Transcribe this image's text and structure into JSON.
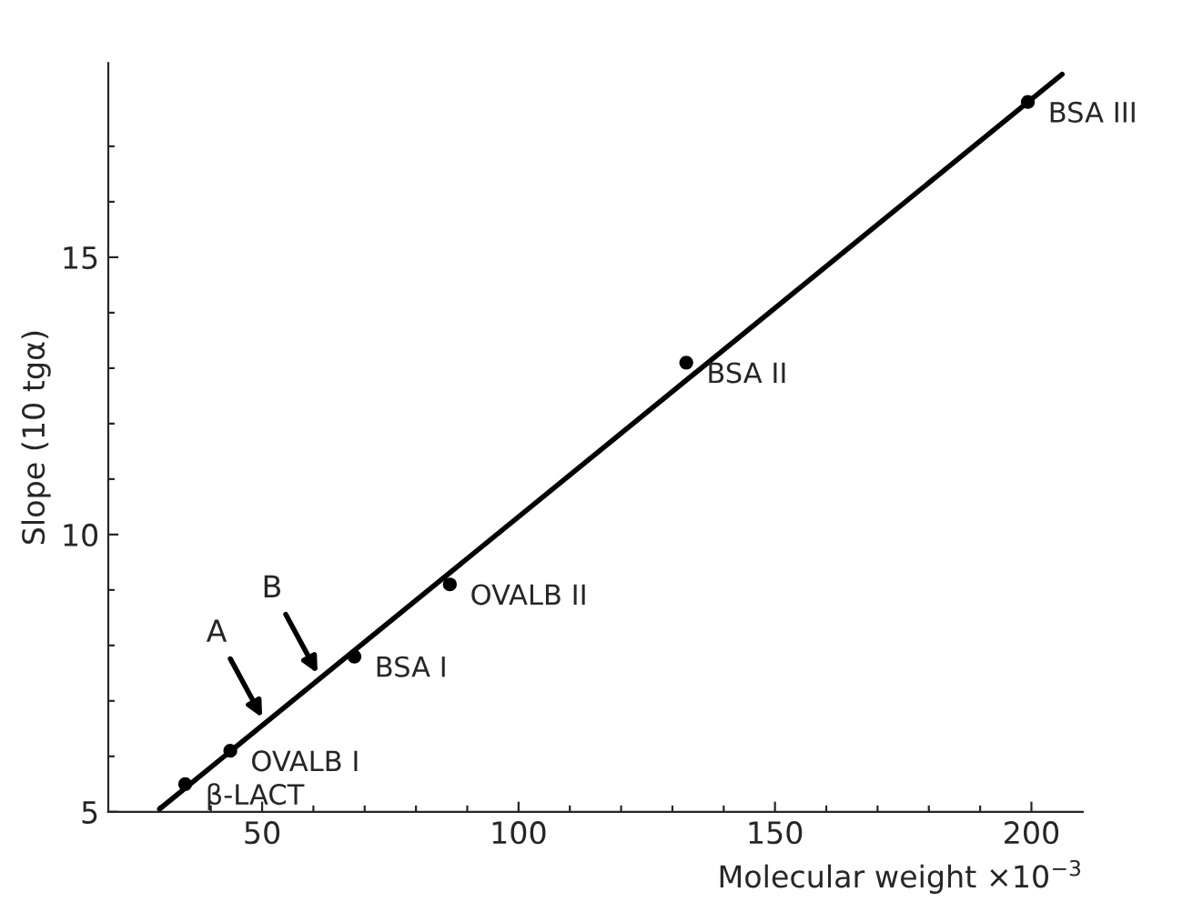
{
  "chart_data": {
    "type": "scatter",
    "xlabel": "Molecular weight ×10$^{−3}$",
    "ylabel": "Slope (10 tgα)",
    "xlim": [
      20,
      210
    ],
    "ylim": [
      5,
      18.5
    ],
    "xticks": [
      {
        "value": 30,
        "label": null
      },
      {
        "value": 40,
        "label": null
      },
      50,
      {
        "value": 60,
        "label": null
      },
      {
        "value": 70,
        "label": null
      },
      {
        "value": 80,
        "label": null
      },
      {
        "value": 90,
        "label": null
      },
      100,
      {
        "value": 110,
        "label": null
      },
      {
        "value": 120,
        "label": null
      },
      {
        "value": 130,
        "label": null
      },
      {
        "value": 140,
        "label": null
      },
      150,
      {
        "value": 160,
        "label": null
      },
      {
        "value": 170,
        "label": null
      },
      {
        "value": 180,
        "label": null
      },
      {
        "value": 190,
        "label": null
      },
      200
    ],
    "yticks": [
      5,
      {
        "value": 6,
        "label": null
      },
      {
        "value": 7,
        "label": null
      },
      {
        "value": 8,
        "label": null
      },
      {
        "value": 9,
        "label": null
      },
      10,
      {
        "value": 11,
        "label": null
      },
      {
        "value": 12,
        "label": null
      },
      {
        "value": 13,
        "label": null
      },
      {
        "value": 14,
        "label": null
      },
      15,
      {
        "value": 16,
        "label": null
      },
      {
        "value": 17,
        "label": null
      }
    ],
    "grid": false,
    "legend": false,
    "series": [
      {
        "marker": "circle",
        "color": "#000000",
        "x": [
          35,
          43.8,
          68,
          86.6,
          132.7,
          199.3
        ],
        "values": [
          5.5,
          6.1,
          7.8,
          9.1,
          13.1,
          17.8
        ]
      },
      {
        "type": "line",
        "color": "#000000",
        "x": [
          30,
          206
        ],
        "values": [
          5.05,
          18.3
        ]
      }
    ],
    "annotations": [
      {
        "text": "β-LACT",
        "x": 35,
        "y": 5.5
      },
      {
        "text": "OVALB I",
        "x": 43.8,
        "y": 6.1
      },
      {
        "text": "BSA I",
        "x": 68,
        "y": 7.8
      },
      {
        "text": "OVALB II",
        "x": 86.6,
        "y": 9.1
      },
      {
        "text": "BSA II",
        "x": 132.7,
        "y": 13.1
      },
      {
        "text": "BSA III",
        "x": 199.3,
        "y": 17.8
      },
      {
        "text": "A",
        "x": 50,
        "y": 6.7
      },
      {
        "text": "B",
        "x": 60.8,
        "y": 7.5
      }
    ]
  }
}
